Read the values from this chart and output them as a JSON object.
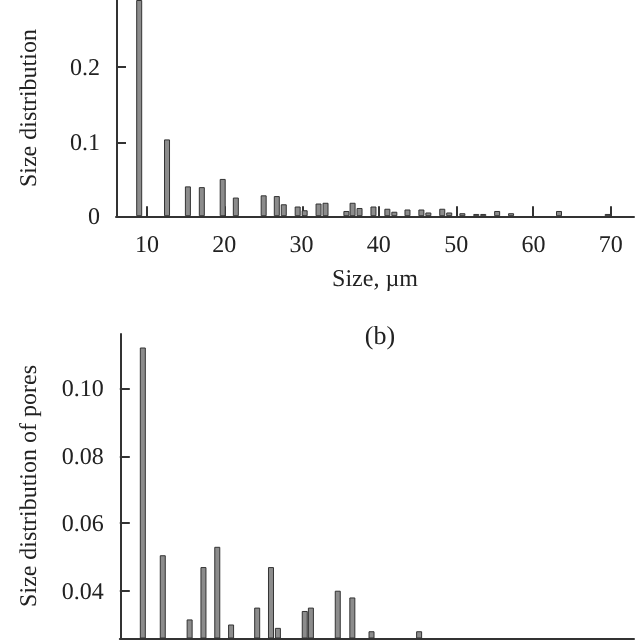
{
  "chart_data": [
    {
      "type": "bar",
      "xlabel": "Size, µm",
      "ylabel": "Size distribution",
      "color": "#8c8c8c",
      "xlim": [
        6,
        73
      ],
      "xticks": [
        10,
        20,
        30,
        40,
        50,
        60,
        70
      ],
      "ylim": [
        0,
        0.29
      ],
      "yticks": [
        0,
        0.1,
        0.2
      ],
      "grid": false,
      "x": [
        9.0,
        12.6,
        15.3,
        17.1,
        19.8,
        21.5,
        25.1,
        26.8,
        27.7,
        29.5,
        30.4,
        32.2,
        33.1,
        35.8,
        36.6,
        37.5,
        39.3,
        41.1,
        42.0,
        43.7,
        45.5,
        46.4,
        48.2,
        49.1,
        50.8,
        52.6,
        53.5,
        55.3,
        57.1,
        63.3,
        69.6
      ],
      "values": [
        0.29,
        0.103,
        0.04,
        0.039,
        0.05,
        0.025,
        0.028,
        0.027,
        0.016,
        0.013,
        0.008,
        0.017,
        0.018,
        0.007,
        0.018,
        0.011,
        0.013,
        0.01,
        0.006,
        0.009,
        0.009,
        0.005,
        0.01,
        0.005,
        0.004,
        0.003,
        0.003,
        0.007,
        0.004,
        0.007,
        0.003
      ]
    },
    {
      "type": "bar",
      "title": "(b)",
      "ylabel": "Size distribution of pores",
      "color": "#8c8c8c",
      "xlim": [
        6,
        73
      ],
      "ylim": [
        0.026,
        0.116
      ],
      "yticks": [
        {
          "value": 0.04,
          "label": "0.04"
        },
        {
          "value": 0.06,
          "label": "0.06"
        },
        {
          "value": 0.08,
          "label": "0.08"
        },
        {
          "value": 0.1,
          "label": "0.10"
        }
      ],
      "tick_labels": "y",
      "grid": false,
      "x": [
        9.0,
        11.6,
        15.1,
        16.9,
        18.7,
        20.5,
        23.9,
        25.7,
        26.6,
        30.1,
        30.9,
        34.4,
        36.3,
        38.8,
        45.0
      ],
      "values": [
        0.112,
        0.0505,
        0.0315,
        0.047,
        0.053,
        0.03,
        0.035,
        0.047,
        0.029,
        0.034,
        0.035,
        0.04,
        0.038,
        0.028,
        0.028
      ]
    }
  ]
}
